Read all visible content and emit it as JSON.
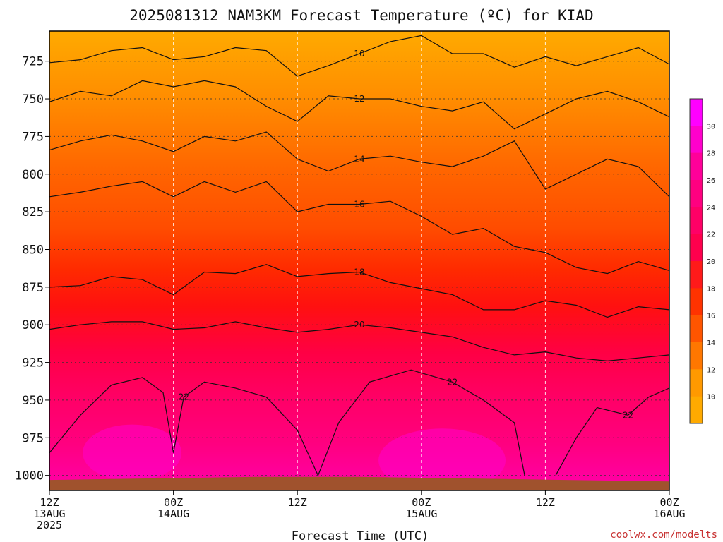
{
  "chart_data": {
    "type": "heatmap",
    "title": "2025081312 NAM3KM Forecast Temperature (ºC) for KIAD",
    "xlabel": "Forecast Time (UTC)",
    "credit": "coolwx.com/modelts",
    "x_ticks": [
      {
        "lines": [
          "12Z",
          "13AUG",
          "2025"
        ]
      },
      {
        "lines": [
          "00Z",
          "14AUG"
        ]
      },
      {
        "lines": [
          "12Z"
        ]
      },
      {
        "lines": [
          "00Z",
          "15AUG"
        ]
      },
      {
        "lines": [
          "12Z"
        ]
      },
      {
        "lines": [
          "00Z",
          "16AUG"
        ]
      }
    ],
    "xlim_hours": [
      0,
      60
    ],
    "y_ticks": [
      "725",
      "750",
      "775",
      "800",
      "825",
      "850",
      "875",
      "900",
      "925",
      "950",
      "975",
      "1000"
    ],
    "ylim_hpa": [
      705,
      1010
    ],
    "grid": true,
    "colorbar": {
      "levels": [
        30,
        28,
        26,
        24,
        22,
        20,
        18,
        16,
        14,
        12,
        10
      ],
      "colors": [
        "#ff00ff",
        "#ff00cc",
        "#ff0099",
        "#ff0080",
        "#ff0066",
        "#ff004d",
        "#ff1a1a",
        "#ff3300",
        "#ff5500",
        "#ff7700",
        "#ff9900",
        "#ffaa00"
      ]
    },
    "contours": [
      {
        "label": "10",
        "points": [
          [
            0,
            726
          ],
          [
            3,
            724
          ],
          [
            6,
            718
          ],
          [
            9,
            716
          ],
          [
            12,
            724
          ],
          [
            15,
            722
          ],
          [
            18,
            716
          ],
          [
            21,
            718
          ],
          [
            24,
            735
          ],
          [
            27,
            728
          ],
          [
            30,
            720
          ],
          [
            33,
            712
          ],
          [
            36,
            708
          ],
          [
            39,
            720
          ],
          [
            42,
            720
          ],
          [
            45,
            729
          ],
          [
            48,
            722
          ],
          [
            51,
            728
          ],
          [
            54,
            722
          ],
          [
            57,
            716
          ],
          [
            60,
            727
          ]
        ]
      },
      {
        "label": "12",
        "points": [
          [
            0,
            752
          ],
          [
            3,
            745
          ],
          [
            6,
            748
          ],
          [
            9,
            738
          ],
          [
            12,
            742
          ],
          [
            15,
            738
          ],
          [
            18,
            742
          ],
          [
            21,
            755
          ],
          [
            24,
            765
          ],
          [
            27,
            748
          ],
          [
            30,
            750
          ],
          [
            33,
            750
          ],
          [
            36,
            755
          ],
          [
            39,
            758
          ],
          [
            42,
            752
          ],
          [
            45,
            770
          ],
          [
            48,
            760
          ],
          [
            51,
            750
          ],
          [
            54,
            745
          ],
          [
            57,
            752
          ],
          [
            60,
            762
          ]
        ]
      },
      {
        "label": "14",
        "points": [
          [
            0,
            784
          ],
          [
            3,
            778
          ],
          [
            6,
            774
          ],
          [
            9,
            778
          ],
          [
            12,
            785
          ],
          [
            15,
            775
          ],
          [
            18,
            778
          ],
          [
            21,
            772
          ],
          [
            24,
            790
          ],
          [
            27,
            798
          ],
          [
            30,
            790
          ],
          [
            33,
            788
          ],
          [
            36,
            792
          ],
          [
            39,
            795
          ],
          [
            42,
            788
          ],
          [
            45,
            778
          ],
          [
            48,
            810
          ],
          [
            51,
            800
          ],
          [
            54,
            790
          ],
          [
            57,
            795
          ],
          [
            60,
            815
          ]
        ]
      },
      {
        "label": "16",
        "points": [
          [
            0,
            815
          ],
          [
            3,
            812
          ],
          [
            6,
            808
          ],
          [
            9,
            805
          ],
          [
            12,
            815
          ],
          [
            15,
            805
          ],
          [
            18,
            812
          ],
          [
            21,
            805
          ],
          [
            24,
            825
          ],
          [
            27,
            820
          ],
          [
            30,
            820
          ],
          [
            33,
            818
          ],
          [
            36,
            828
          ],
          [
            39,
            840
          ],
          [
            42,
            836
          ],
          [
            45,
            848
          ],
          [
            48,
            852
          ],
          [
            51,
            862
          ],
          [
            54,
            866
          ],
          [
            57,
            858
          ],
          [
            60,
            864
          ]
        ]
      },
      {
        "label": "18",
        "points": [
          [
            0,
            875
          ],
          [
            3,
            874
          ],
          [
            6,
            868
          ],
          [
            9,
            870
          ],
          [
            12,
            880
          ],
          [
            15,
            865
          ],
          [
            18,
            866
          ],
          [
            21,
            860
          ],
          [
            24,
            868
          ],
          [
            27,
            866
          ],
          [
            30,
            865
          ],
          [
            33,
            872
          ],
          [
            36,
            876
          ],
          [
            39,
            880
          ],
          [
            42,
            890
          ],
          [
            45,
            890
          ],
          [
            48,
            884
          ],
          [
            51,
            887
          ],
          [
            54,
            895
          ],
          [
            57,
            888
          ],
          [
            60,
            890
          ]
        ]
      },
      {
        "label": "20",
        "points": [
          [
            0,
            903
          ],
          [
            3,
            900
          ],
          [
            6,
            898
          ],
          [
            9,
            898
          ],
          [
            12,
            903
          ],
          [
            15,
            902
          ],
          [
            18,
            898
          ],
          [
            21,
            902
          ],
          [
            24,
            905
          ],
          [
            27,
            903
          ],
          [
            30,
            900
          ],
          [
            33,
            902
          ],
          [
            36,
            905
          ],
          [
            39,
            908
          ],
          [
            42,
            915
          ],
          [
            45,
            920
          ],
          [
            48,
            918
          ],
          [
            51,
            922
          ],
          [
            54,
            924
          ],
          [
            57,
            922
          ],
          [
            60,
            920
          ]
        ]
      },
      {
        "label": "22",
        "points": [
          [
            0,
            985
          ],
          [
            3,
            960
          ],
          [
            6,
            940
          ],
          [
            9,
            935
          ],
          [
            11,
            945
          ],
          [
            12,
            985
          ],
          [
            13,
            948
          ],
          [
            15,
            938
          ],
          [
            18,
            942
          ],
          [
            21,
            948
          ],
          [
            24,
            970
          ],
          [
            26,
            1000
          ]
        ]
      },
      {
        "label": "22",
        "points": [
          [
            26,
            1000
          ],
          [
            28,
            965
          ],
          [
            31,
            938
          ],
          [
            35,
            930
          ],
          [
            39,
            938
          ],
          [
            42,
            950
          ],
          [
            45,
            965
          ],
          [
            46,
            1000
          ]
        ]
      },
      {
        "label": "22",
        "points": [
          [
            49,
            1000
          ],
          [
            51,
            975
          ],
          [
            53,
            955
          ],
          [
            56,
            960
          ],
          [
            58,
            948
          ],
          [
            60,
            942
          ]
        ]
      }
    ],
    "terrain": {
      "pressure_hpa": [
        1003,
        1002,
        1001,
        1001,
        1002,
        1003,
        1004
      ],
      "times_hours": [
        0,
        10,
        20,
        30,
        40,
        50,
        60
      ]
    }
  }
}
